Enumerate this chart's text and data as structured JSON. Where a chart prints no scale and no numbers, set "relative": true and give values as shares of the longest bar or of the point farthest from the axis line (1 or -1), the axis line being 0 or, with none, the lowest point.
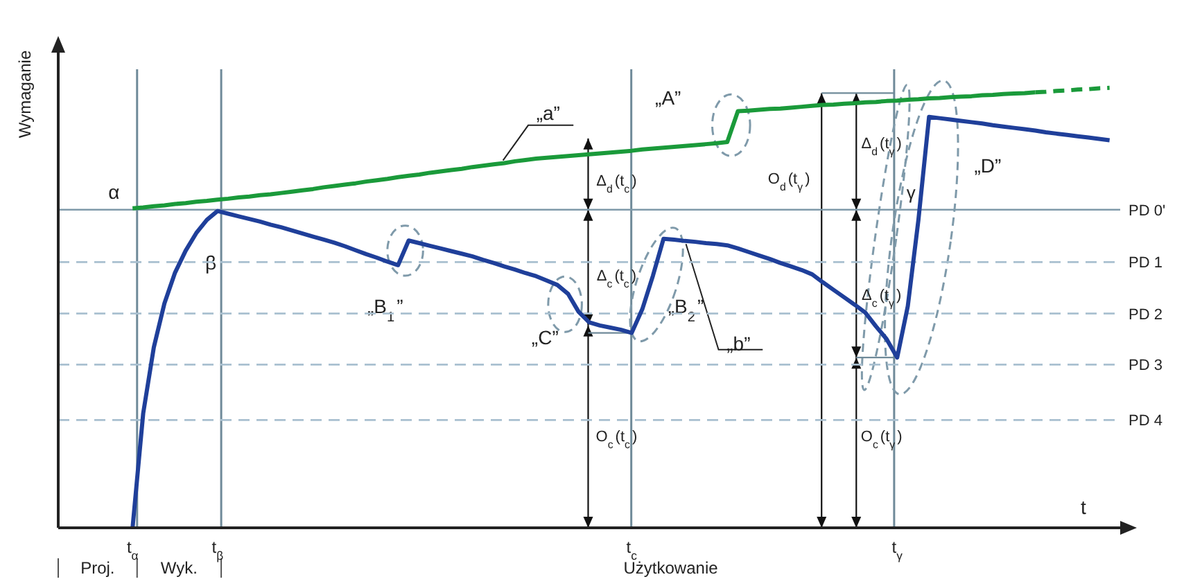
{
  "chart_data": {
    "type": "line",
    "relative": true,
    "ylabel": "Wymaganie",
    "xlabel": "t",
    "categories": [
      null,
      null,
      null,
      null,
      null,
      null,
      null,
      "t$_{α}$",
      null,
      null,
      null,
      null,
      null,
      null,
      null,
      "t$_{β}$",
      null,
      null,
      null,
      null,
      null,
      null,
      null,
      null,
      null,
      null,
      null,
      null,
      null,
      null,
      null,
      null,
      null,
      null,
      null,
      null,
      null,
      null,
      null,
      null,
      null,
      null,
      null,
      null,
      null,
      null,
      null,
      null,
      null,
      null,
      null,
      null,
      null,
      null,
      "t$_{c}$",
      null,
      null,
      null,
      null,
      null,
      null,
      null,
      null,
      null,
      null,
      null,
      null,
      null,
      null,
      null,
      null,
      null,
      null,
      null,
      null,
      null,
      null,
      null,
      null,
      "t$_{γ}$",
      null,
      null,
      null,
      null,
      null,
      null,
      null,
      null,
      null,
      null,
      null,
      null,
      null,
      null,
      null,
      null,
      null,
      null,
      null,
      null,
      null
    ],
    "series": [
      {
        "color": "#1a9a3a",
        "values": [
          null,
          null,
          null,
          null,
          null,
          null,
          null,
          0.726,
          0.728,
          0.731,
          0.733,
          0.736,
          0.738,
          0.741,
          0.743,
          0.746,
          0.748,
          0.751,
          0.753,
          0.756,
          0.758,
          0.761,
          0.764,
          0.767,
          0.77,
          0.774,
          0.777,
          0.78,
          0.783,
          0.787,
          0.79,
          0.793,
          0.797,
          0.8,
          0.803,
          0.807,
          0.81,
          0.813,
          0.816,
          0.82,
          0.823,
          0.826,
          0.829,
          0.833,
          0.836,
          0.839,
          0.841,
          0.843,
          0.845,
          0.847,
          0.849,
          0.851,
          0.853,
          0.855,
          0.857,
          0.86,
          0.862,
          0.864,
          0.866,
          0.868,
          0.87,
          0.872,
          0.874,
          0.877,
          0.947,
          0.948,
          0.95,
          0.952,
          0.953,
          0.955,
          0.957,
          0.959,
          0.961,
          0.962,
          0.964,
          0.965,
          0.967,
          0.968,
          0.97,
          0.971,
          0.973,
          0.974,
          0.976,
          0.977,
          0.979,
          0.98,
          0.981,
          0.983,
          0.984,
          0.986,
          0.987,
          0.988,
          0.99,
          null,
          null,
          null,
          null,
          null,
          null,
          null,
          null
        ]
      },
      {
        "color": "#1a9a3a",
        "line_style": "dashed",
        "values": [
          null,
          null,
          null,
          null,
          null,
          null,
          null,
          null,
          null,
          null,
          null,
          null,
          null,
          null,
          null,
          null,
          null,
          null,
          null,
          null,
          null,
          null,
          null,
          null,
          null,
          null,
          null,
          null,
          null,
          null,
          null,
          null,
          null,
          null,
          null,
          null,
          null,
          null,
          null,
          null,
          null,
          null,
          null,
          null,
          null,
          null,
          null,
          null,
          null,
          null,
          null,
          null,
          null,
          null,
          null,
          null,
          null,
          null,
          null,
          null,
          null,
          null,
          null,
          null,
          null,
          null,
          null,
          null,
          null,
          null,
          null,
          null,
          null,
          null,
          null,
          null,
          null,
          null,
          null,
          null,
          null,
          null,
          null,
          null,
          null,
          null,
          null,
          null,
          null,
          null,
          null,
          null,
          0.99,
          0.991,
          0.993,
          0.994,
          0.996,
          0.997,
          0.999,
          1,
          null
        ]
      },
      {
        "color": "#1f3f9a",
        "values": [
          null,
          null,
          null,
          null,
          null,
          null,
          null,
          0,
          0.26,
          0.41,
          0.51,
          0.58,
          0.63,
          0.67,
          0.7,
          0.72,
          0.714,
          0.708,
          0.702,
          0.696,
          0.689,
          0.683,
          0.676,
          0.669,
          0.662,
          0.655,
          0.648,
          0.64,
          0.631,
          0.622,
          0.614,
          0.605,
          0.597,
          0.653,
          0.647,
          0.641,
          0.635,
          0.629,
          0.623,
          0.617,
          0.609,
          0.602,
          0.594,
          0.587,
          0.579,
          0.572,
          0.562,
          0.552,
          0.532,
          0.491,
          0.467,
          0.46,
          0.455,
          0.45,
          0.443,
          0.497,
          0.573,
          0.657,
          0.655,
          0.652,
          0.65,
          0.647,
          0.645,
          0.642,
          0.635,
          0.627,
          0.619,
          0.611,
          0.602,
          0.594,
          0.586,
          0.576,
          0.558,
          0.541,
          0.524,
          0.507,
          0.489,
          0.458,
          0.429,
          0.387,
          0.504,
          0.7,
          0.934,
          0.931,
          0.928,
          0.925,
          0.922,
          0.919,
          0.915,
          0.912,
          0.909,
          0.906,
          0.903,
          0.899,
          0.896,
          0.893,
          0.89,
          0.887,
          0.884,
          0.881,
          null
        ]
      }
    ],
    "ref_lines": [
      {
        "axis": "y",
        "value": 0.723,
        "label": "PD 0'",
        "color": "#7f9aaa",
        "line_style": "solid"
      },
      {
        "axis": "y",
        "value": 0.604,
        "label": "PD 1",
        "color": "#a9c0d0",
        "line_style": "dashed"
      },
      {
        "axis": "y",
        "value": 0.487,
        "label": "PD 2",
        "color": "#a9c0d0",
        "line_style": "dashed"
      },
      {
        "axis": "y",
        "value": 0.371,
        "label": "PD 3",
        "color": "#a9c0d0",
        "line_style": "dashed"
      },
      {
        "axis": "y",
        "value": 0.245,
        "label": "PD 4",
        "color": "#a9c0d0",
        "line_style": "dashed"
      }
    ],
    "annotations": [
      "α",
      "β",
      "„a”",
      "„A”",
      "„B$_{1}$”",
      "„C”",
      "„B$_{2}$”",
      "„b”",
      "„D”",
      "γ",
      "Δ$_{d}$(t$_{c}$)",
      "Δ$_{c}$(t$_{c}$)",
      "O$_{c}$(t$_{c}$)",
      "O$_{d}$(t$_{γ}$)",
      "Δ$_{d}$(t$_{γ}$)",
      "Δ$_{c}$(t$_{γ}$)",
      "O$_{c}$(t$_{γ}$)",
      "Proj.",
      "Wyk.",
      "Użytkowanie"
    ],
    "marker": "none",
    "grid": "x"
  }
}
